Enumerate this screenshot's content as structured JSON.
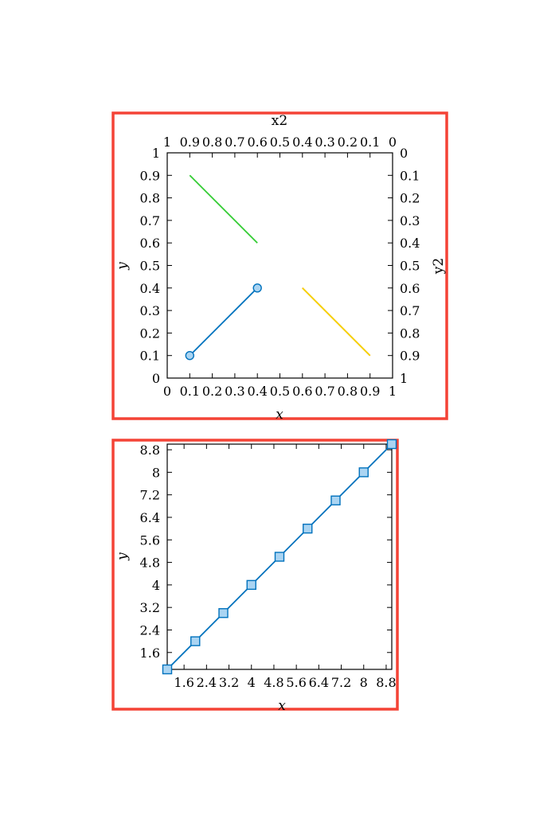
{
  "colors": {
    "frame": "#f44336",
    "blue": "#0072bd",
    "marker_fill": "#aad4f2",
    "green": "#33cc33",
    "yellow": "#f5d800",
    "red": "#f44336"
  },
  "chart_data": [
    {
      "type": "line",
      "xlabel": "x",
      "ylabel": "y",
      "x2label": "x2",
      "y2label": "y2",
      "xlim": [
        0,
        1
      ],
      "ylim": [
        0,
        1
      ],
      "x2lim": [
        1,
        0
      ],
      "y2lim": [
        1,
        0
      ],
      "x_ticks": [
        "0",
        "0.1",
        "0.2",
        "0.3",
        "0.4",
        "0.5",
        "0.6",
        "0.7",
        "0.8",
        "0.9",
        "1"
      ],
      "y_ticks": [
        "0",
        "0.1",
        "0.2",
        "0.3",
        "0.4",
        "0.5",
        "0.6",
        "0.7",
        "0.8",
        "0.9",
        "1"
      ],
      "x2_ticks": [
        "1",
        "0.9",
        "0.8",
        "0.7",
        "0.6",
        "0.5",
        "0.4",
        "0.3",
        "0.2",
        "0.1",
        "0"
      ],
      "y2_ticks": [
        "0",
        "0.1",
        "0.2",
        "0.3",
        "0.4",
        "0.5",
        "0.6",
        "0.7",
        "0.8",
        "0.9",
        "1"
      ],
      "series": [
        {
          "axes": "x-y",
          "color": "blue",
          "marker": "circle",
          "x": [
            0.1,
            0.4
          ],
          "y": [
            0.1,
            0.4
          ]
        },
        {
          "axes": "x-y2",
          "color": "red",
          "marker": "none",
          "x": [
            0.6,
            0.9
          ],
          "y": [
            0.6,
            0.9
          ]
        },
        {
          "axes": "x2-y",
          "color": "green",
          "marker": "none",
          "x": [
            0.9,
            0.6
          ],
          "y": [
            0.9,
            0.6
          ]
        },
        {
          "axes": "x2-y2",
          "color": "yellow",
          "marker": "none",
          "x": [
            0.1,
            0.4
          ],
          "y": [
            0.9,
            0.6
          ]
        }
      ]
    },
    {
      "type": "line",
      "xlabel": "x",
      "ylabel": "y",
      "xlim": [
        1,
        9
      ],
      "ylim": [
        1,
        9
      ],
      "x_ticks": [
        "1.6",
        "2.4",
        "3.2",
        "4",
        "4.8",
        "5.6",
        "6.4",
        "7.2",
        "8",
        "8.8"
      ],
      "y_ticks": [
        "1.6",
        "2.4",
        "3.2",
        "4",
        "4.8",
        "5.6",
        "6.4",
        "7.2",
        "8",
        "8.8"
      ],
      "series": [
        {
          "color": "blue",
          "marker": "square",
          "x": [
            1,
            2,
            3,
            4,
            5,
            6,
            7,
            8,
            9
          ],
          "y": [
            1,
            2,
            3,
            4,
            5,
            6,
            7,
            8,
            9
          ]
        }
      ]
    }
  ]
}
